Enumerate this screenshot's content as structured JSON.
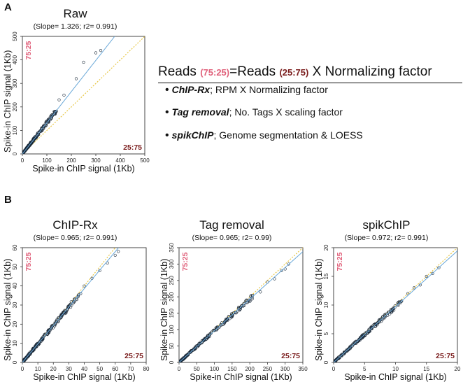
{
  "panel_labels": {
    "a": "A",
    "b": "B"
  },
  "equation": {
    "lhs": "Reads",
    "lhs_ratio": "(75:25)",
    "eq_rhs": "=Reads",
    "rhs_ratio": "(25:75)",
    "tail": "X Normalizing factor"
  },
  "methods": [
    {
      "name": "ChIP-Rx",
      "desc": "; RPM X Normalizing factor"
    },
    {
      "name": "Tag removal",
      "desc": ";  No. Tags X scaling factor"
    },
    {
      "name": "spikChIP",
      "desc": ";  Genome segmentation & LOESS"
    }
  ],
  "colors": {
    "ratio_75_25": "#e0607a",
    "ratio_25_75": "#7a1c1c",
    "fit_line": "#6aa8d8",
    "identity_line": "#e8c84a",
    "points": "#1b2a3a"
  },
  "chart_data": [
    {
      "type": "scatter",
      "title": "Raw",
      "subtitle": "(Slope= 1.326; r2= 0.991)",
      "xlabel": "Spike-in ChIP signal (1Kb)",
      "ylabel": "Spike-in ChIP signal (1Kb)",
      "xlim": [
        0,
        500
      ],
      "ylim": [
        0,
        500
      ],
      "xticks": [
        0,
        100,
        200,
        300,
        400,
        500
      ],
      "yticks": [
        0,
        100,
        200,
        300,
        400,
        500
      ],
      "corner_top_left": "75:25",
      "corner_bottom_right": "25:75",
      "slope": 1.326,
      "r2": 0.991,
      "point_range": [
        0,
        140
      ],
      "outliers": [
        [
          150,
          230
        ],
        [
          170,
          250
        ],
        [
          220,
          320
        ],
        [
          250,
          390
        ],
        [
          300,
          430
        ],
        [
          320,
          440
        ]
      ]
    },
    {
      "type": "scatter",
      "title": "ChIP-Rx",
      "subtitle": "(Slope= 0.965; r2= 0.991)",
      "xlabel": "Spike-in ChIP signal (1Kb)",
      "ylabel": "Spike-in ChIP signal (1Kb)",
      "xlim": [
        0,
        80
      ],
      "ylim": [
        0,
        60
      ],
      "xticks": [
        0,
        10,
        20,
        30,
        40,
        50,
        60,
        70,
        80
      ],
      "yticks": [
        0,
        10,
        20,
        30,
        40,
        50,
        60
      ],
      "corner_top_left": "75:25",
      "corner_bottom_right": "25:75",
      "slope": 0.965,
      "r2": 0.991,
      "point_range": [
        0,
        38
      ],
      "outliers": [
        [
          40,
          40
        ],
        [
          45,
          44
        ],
        [
          50,
          48
        ],
        [
          55,
          52
        ],
        [
          60,
          56
        ],
        [
          62,
          58
        ]
      ]
    },
    {
      "type": "scatter",
      "title": "Tag removal",
      "subtitle": "(Slope= 0.965; r2= 0.99)",
      "xlabel": "Spike-in ChIP signal (1Kb)",
      "ylabel": "Spike-in ChIP signal (1Kb)",
      "xlim": [
        0,
        350
      ],
      "ylim": [
        0,
        350
      ],
      "xticks": [
        0,
        50,
        100,
        150,
        200,
        250,
        300,
        350
      ],
      "yticks": [
        0,
        50,
        100,
        150,
        200,
        250,
        300,
        350
      ],
      "corner_top_left": "75:25",
      "corner_bottom_right": "25:75",
      "slope": 0.965,
      "r2": 0.99,
      "point_range": [
        0,
        210
      ],
      "outliers": [
        [
          230,
          215
        ],
        [
          250,
          245
        ],
        [
          270,
          255
        ],
        [
          290,
          280
        ],
        [
          300,
          285
        ],
        [
          310,
          300
        ]
      ]
    },
    {
      "type": "scatter",
      "title": "spikChIP",
      "subtitle": "(Slope= 0.972; r2= 0.991)",
      "xlabel": "Spike-in ChIP signal (1Kb)",
      "ylabel": "Spike-in ChIP signal (1Kb)",
      "xlim": [
        0,
        20
      ],
      "ylim": [
        0,
        20
      ],
      "xticks": [
        0,
        5,
        10,
        15,
        20
      ],
      "yticks": [
        0,
        5,
        10,
        15,
        20
      ],
      "corner_top_left": "75:25",
      "corner_bottom_right": "25:75",
      "slope": 0.972,
      "r2": 0.991,
      "point_range": [
        0,
        11
      ],
      "outliers": [
        [
          12,
          12
        ],
        [
          13,
          13
        ],
        [
          14,
          13.5
        ],
        [
          15,
          15
        ],
        [
          16,
          15.5
        ],
        [
          17,
          16.5
        ]
      ]
    }
  ]
}
